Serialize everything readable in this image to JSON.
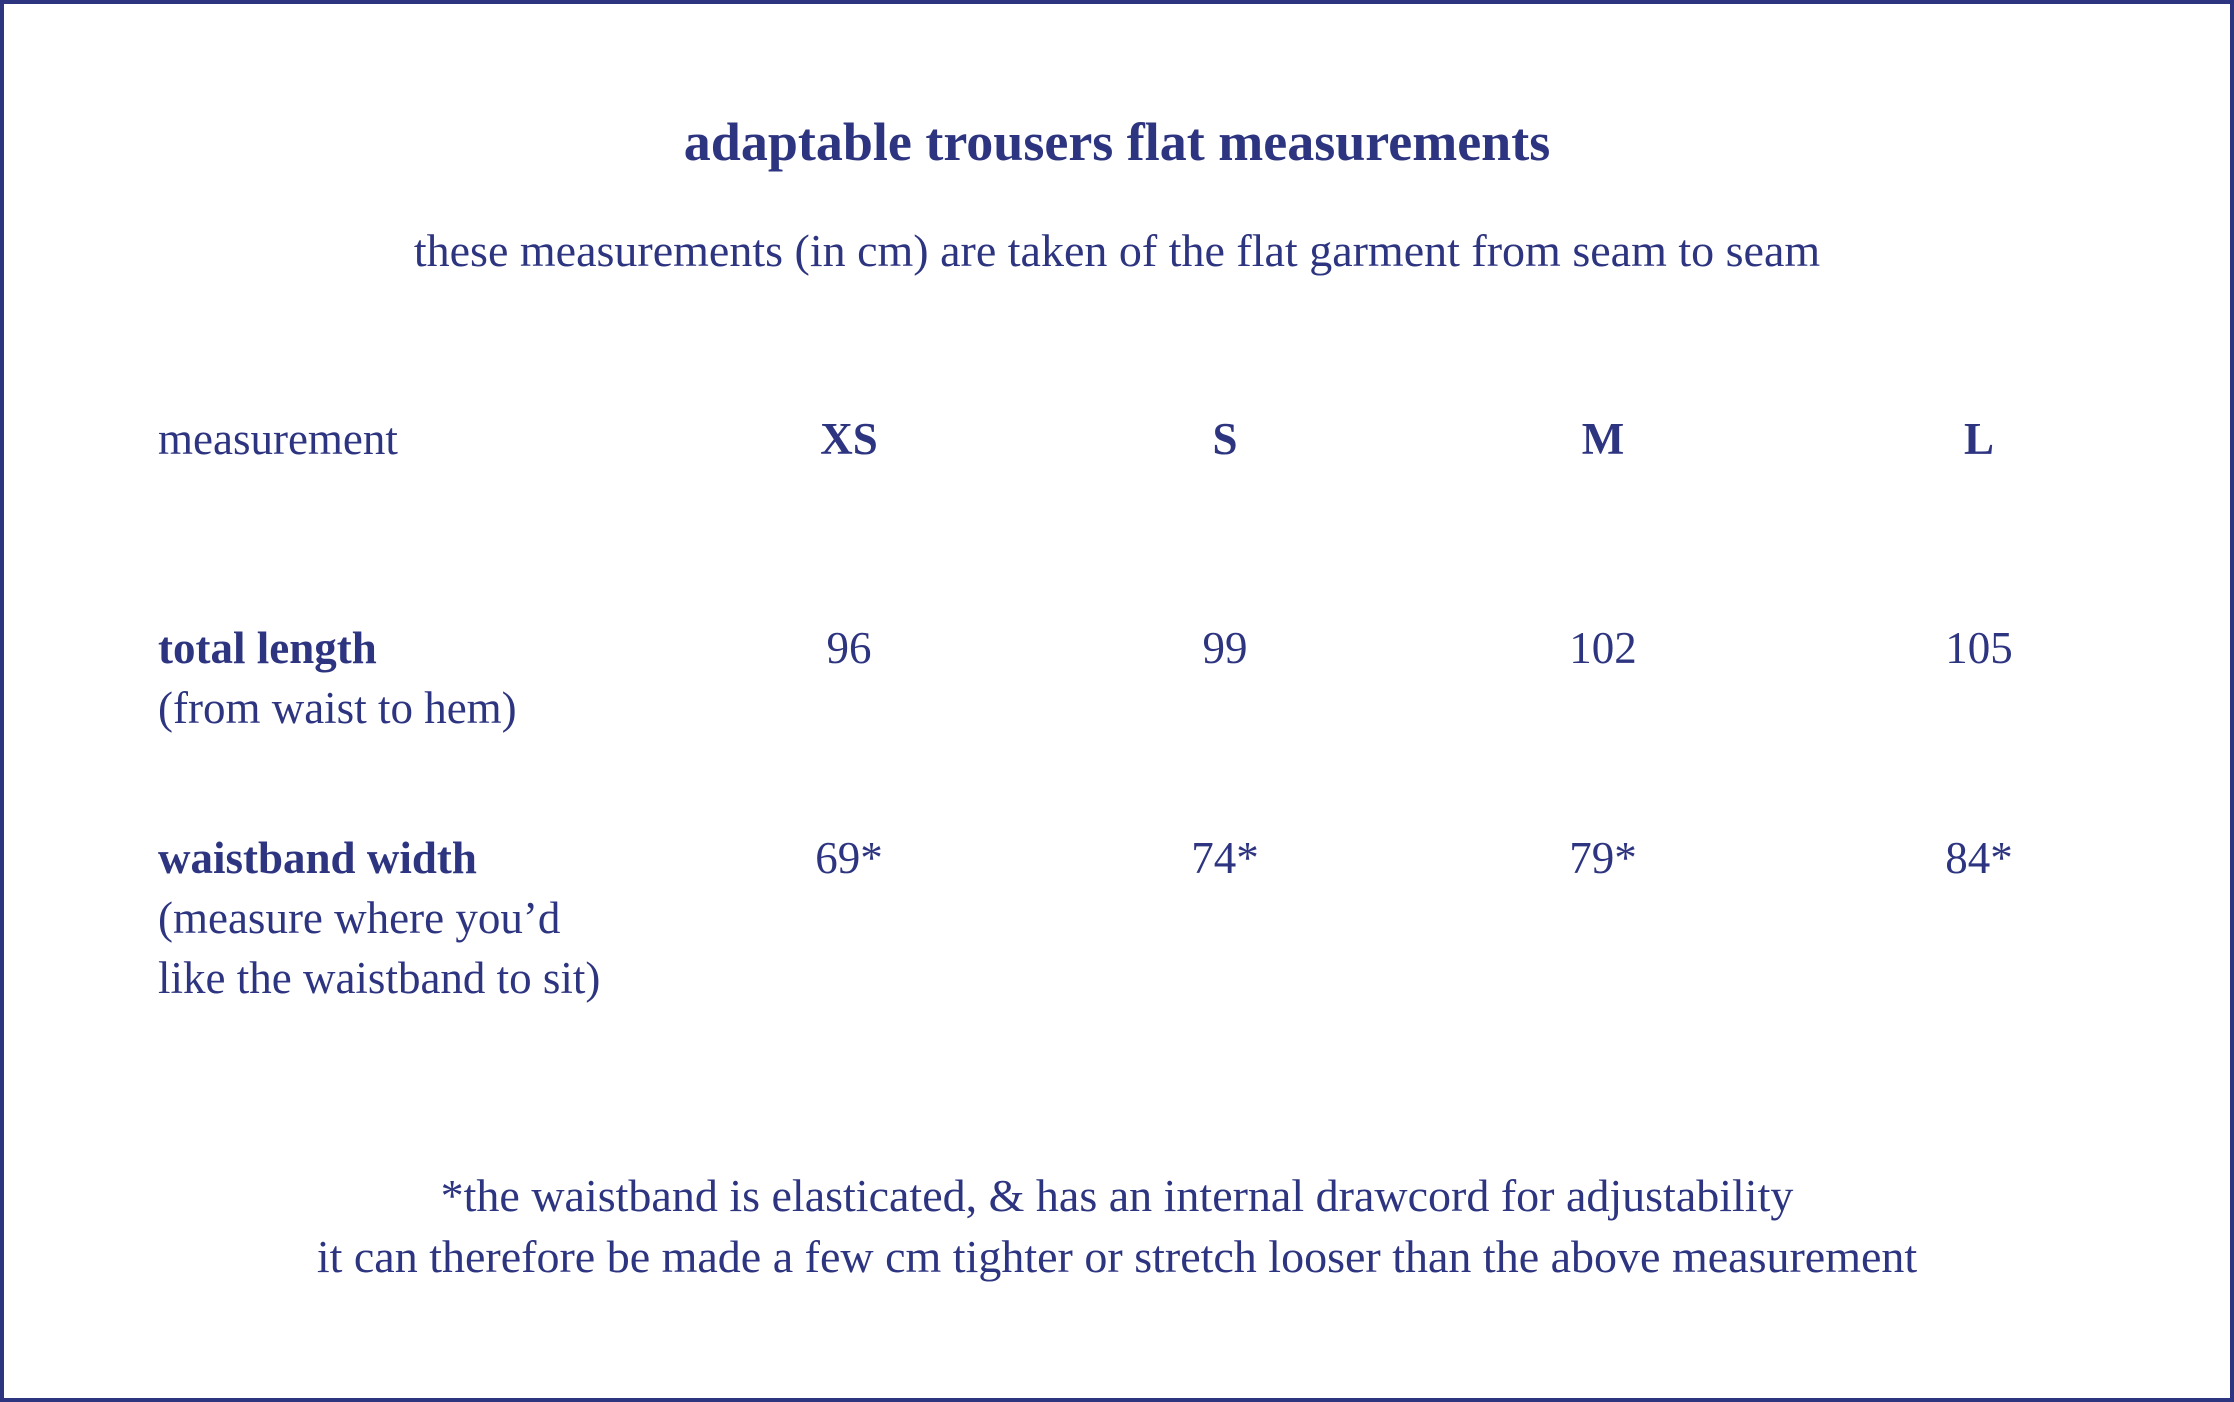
{
  "title": "adaptable trousers flat measurements",
  "subtitle": "these measurements (in cm) are taken of the flat garment from seam to seam",
  "table": {
    "header": {
      "label": "measurement",
      "sizes": [
        "XS",
        "S",
        "M",
        "L"
      ]
    },
    "rows": [
      {
        "name": "total length",
        "note_lines": [
          "(from waist to hem)"
        ],
        "values": [
          "96",
          "99",
          "102",
          "105"
        ]
      },
      {
        "name": "waistband width",
        "note_lines": [
          "(measure where you’d",
          "like the waistband to sit)"
        ],
        "values": [
          "69*",
          "74*",
          "79*",
          "84*"
        ]
      }
    ]
  },
  "footnote": [
    "*the waistband is elasticated, & has an internal drawcord for adjustability",
    "it can therefore be made a few cm tighter or stretch looser than the above measurement"
  ],
  "colors": {
    "text": "#2e3580",
    "border": "#2e3580",
    "background": "#ffffff"
  }
}
